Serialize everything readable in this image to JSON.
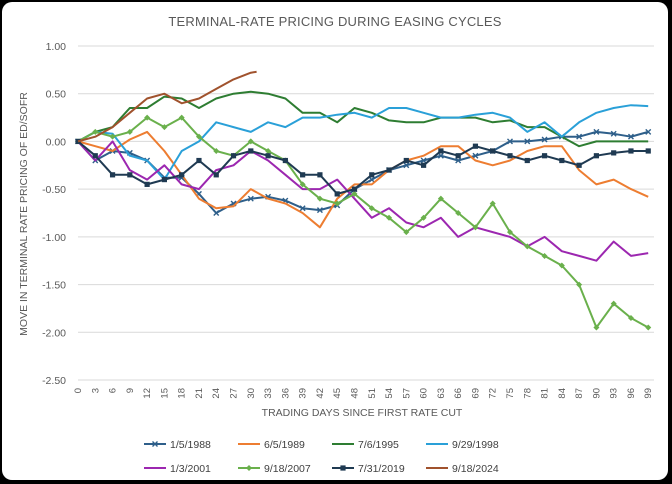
{
  "chart_data": {
    "type": "line",
    "title": "TERMINAL-RATE PRICING DURING EASING CYCLES",
    "xlabel": "TRADING DAYS SINCE FIRST RATE CUT",
    "ylabel": "MOVE IN TERMINAL RATE PRICING OF ED/SOFR",
    "ylim": [
      -2.5,
      1.0
    ],
    "xlim": [
      0,
      100
    ],
    "ytick_values": [
      1.0,
      0.5,
      0.0,
      -0.5,
      -1.0,
      -1.5,
      -2.0,
      -2.5
    ],
    "ytick_labels": [
      "1.00",
      "0.50",
      "0.00",
      "-0.50",
      "-1.00",
      "-1.50",
      "-2.00",
      "-2.50"
    ],
    "xtick_values": [
      0,
      3,
      6,
      9,
      12,
      15,
      18,
      21,
      24,
      27,
      30,
      33,
      36,
      39,
      42,
      45,
      48,
      51,
      54,
      57,
      60,
      63,
      66,
      69,
      72,
      75,
      78,
      81,
      84,
      87,
      90,
      93,
      96,
      99
    ],
    "xtick_labels": [
      "0",
      "3",
      "6",
      "9",
      "12",
      "15",
      "18",
      "21",
      "24",
      "27",
      "30",
      "33",
      "36",
      "39",
      "42",
      "45",
      "48",
      "51",
      "54",
      "57",
      "60",
      "63",
      "66",
      "69",
      "72",
      "75",
      "78",
      "81",
      "84",
      "87",
      "90",
      "93",
      "96",
      "99"
    ],
    "grid": "horizontal",
    "legend_position": "bottom",
    "series": [
      {
        "name": "1/5/1988",
        "color": "#2e5f8a",
        "marker": "x",
        "points": [
          [
            0,
            0
          ],
          [
            3,
            -0.2
          ],
          [
            6,
            -0.1
          ],
          [
            9,
            -0.12
          ],
          [
            12,
            -0.2
          ],
          [
            15,
            -0.38
          ],
          [
            18,
            -0.38
          ],
          [
            21,
            -0.55
          ],
          [
            24,
            -0.75
          ],
          [
            27,
            -0.65
          ],
          [
            30,
            -0.6
          ],
          [
            33,
            -0.58
          ],
          [
            36,
            -0.62
          ],
          [
            39,
            -0.7
          ],
          [
            42,
            -0.72
          ],
          [
            45,
            -0.67
          ],
          [
            48,
            -0.5
          ],
          [
            51,
            -0.4
          ],
          [
            54,
            -0.3
          ],
          [
            57,
            -0.25
          ],
          [
            60,
            -0.2
          ],
          [
            63,
            -0.15
          ],
          [
            66,
            -0.2
          ],
          [
            69,
            -0.15
          ],
          [
            72,
            -0.1
          ],
          [
            75,
            0.0
          ],
          [
            78,
            0.0
          ],
          [
            81,
            0.02
          ],
          [
            84,
            0.05
          ],
          [
            87,
            0.05
          ],
          [
            90,
            0.1
          ],
          [
            93,
            0.08
          ],
          [
            96,
            0.05
          ],
          [
            99,
            0.1
          ]
        ]
      },
      {
        "name": "6/5/1989",
        "color": "#ed7d31",
        "marker": "none",
        "points": [
          [
            0,
            0
          ],
          [
            3,
            -0.05
          ],
          [
            6,
            -0.1
          ],
          [
            9,
            0.02
          ],
          [
            12,
            0.1
          ],
          [
            15,
            -0.1
          ],
          [
            18,
            -0.35
          ],
          [
            21,
            -0.6
          ],
          [
            24,
            -0.7
          ],
          [
            27,
            -0.68
          ],
          [
            30,
            -0.5
          ],
          [
            33,
            -0.6
          ],
          [
            36,
            -0.65
          ],
          [
            39,
            -0.75
          ],
          [
            42,
            -0.9
          ],
          [
            45,
            -0.6
          ],
          [
            48,
            -0.45
          ],
          [
            51,
            -0.45
          ],
          [
            54,
            -0.3
          ],
          [
            57,
            -0.2
          ],
          [
            60,
            -0.15
          ],
          [
            63,
            -0.05
          ],
          [
            66,
            -0.05
          ],
          [
            69,
            -0.2
          ],
          [
            72,
            -0.25
          ],
          [
            75,
            -0.2
          ],
          [
            78,
            -0.1
          ],
          [
            81,
            -0.05
          ],
          [
            84,
            -0.05
          ],
          [
            87,
            -0.3
          ],
          [
            90,
            -0.45
          ],
          [
            93,
            -0.4
          ],
          [
            96,
            -0.5
          ],
          [
            99,
            -0.58
          ]
        ]
      },
      {
        "name": "7/6/1995",
        "color": "#2e7d32",
        "marker": "none",
        "points": [
          [
            0,
            0
          ],
          [
            3,
            0.1
          ],
          [
            6,
            0.15
          ],
          [
            9,
            0.35
          ],
          [
            12,
            0.35
          ],
          [
            15,
            0.47
          ],
          [
            18,
            0.45
          ],
          [
            21,
            0.35
          ],
          [
            24,
            0.45
          ],
          [
            27,
            0.5
          ],
          [
            30,
            0.52
          ],
          [
            33,
            0.5
          ],
          [
            36,
            0.45
          ],
          [
            39,
            0.3
          ],
          [
            42,
            0.3
          ],
          [
            45,
            0.2
          ],
          [
            48,
            0.35
          ],
          [
            51,
            0.3
          ],
          [
            54,
            0.22
          ],
          [
            57,
            0.2
          ],
          [
            60,
            0.2
          ],
          [
            63,
            0.25
          ],
          [
            66,
            0.25
          ],
          [
            69,
            0.25
          ],
          [
            72,
            0.2
          ],
          [
            75,
            0.22
          ],
          [
            78,
            0.15
          ],
          [
            81,
            0.15
          ],
          [
            84,
            0.05
          ],
          [
            87,
            -0.05
          ],
          [
            90,
            0.0
          ],
          [
            93,
            0.0
          ],
          [
            96,
            0.0
          ],
          [
            99,
            0.0
          ]
        ]
      },
      {
        "name": "9/29/1998",
        "color": "#2aa0d8",
        "marker": "none",
        "points": [
          [
            0,
            0
          ],
          [
            3,
            0.1
          ],
          [
            6,
            0.08
          ],
          [
            9,
            -0.15
          ],
          [
            12,
            -0.2
          ],
          [
            15,
            -0.4
          ],
          [
            18,
            -0.1
          ],
          [
            21,
            0.0
          ],
          [
            24,
            0.2
          ],
          [
            27,
            0.15
          ],
          [
            30,
            0.1
          ],
          [
            33,
            0.2
          ],
          [
            36,
            0.15
          ],
          [
            39,
            0.25
          ],
          [
            42,
            0.25
          ],
          [
            45,
            0.28
          ],
          [
            48,
            0.3
          ],
          [
            51,
            0.25
          ],
          [
            54,
            0.35
          ],
          [
            57,
            0.35
          ],
          [
            60,
            0.3
          ],
          [
            63,
            0.25
          ],
          [
            66,
            0.25
          ],
          [
            69,
            0.28
          ],
          [
            72,
            0.3
          ],
          [
            75,
            0.25
          ],
          [
            78,
            0.1
          ],
          [
            81,
            0.2
          ],
          [
            84,
            0.05
          ],
          [
            87,
            0.2
          ],
          [
            90,
            0.3
          ],
          [
            93,
            0.35
          ],
          [
            96,
            0.38
          ],
          [
            99,
            0.37
          ]
        ]
      },
      {
        "name": "1/3/2001",
        "color": "#9c27b0",
        "marker": "none",
        "points": [
          [
            0,
            0
          ],
          [
            3,
            -0.2
          ],
          [
            6,
            0.0
          ],
          [
            9,
            -0.3
          ],
          [
            12,
            -0.4
          ],
          [
            15,
            -0.25
          ],
          [
            18,
            -0.45
          ],
          [
            21,
            -0.5
          ],
          [
            24,
            -0.3
          ],
          [
            27,
            -0.25
          ],
          [
            30,
            -0.1
          ],
          [
            33,
            -0.2
          ],
          [
            36,
            -0.35
          ],
          [
            39,
            -0.5
          ],
          [
            42,
            -0.5
          ],
          [
            45,
            -0.4
          ],
          [
            48,
            -0.6
          ],
          [
            51,
            -0.8
          ],
          [
            54,
            -0.7
          ],
          [
            57,
            -0.85
          ],
          [
            60,
            -0.9
          ],
          [
            63,
            -0.8
          ],
          [
            66,
            -1.0
          ],
          [
            69,
            -0.9
          ],
          [
            72,
            -0.95
          ],
          [
            75,
            -1.0
          ],
          [
            78,
            -1.1
          ],
          [
            81,
            -1.0
          ],
          [
            84,
            -1.15
          ],
          [
            87,
            -1.2
          ],
          [
            90,
            -1.25
          ],
          [
            93,
            -1.05
          ],
          [
            96,
            -1.2
          ],
          [
            99,
            -1.17
          ]
        ]
      },
      {
        "name": "9/18/2007",
        "color": "#6ab04c",
        "marker": "diamond",
        "points": [
          [
            0,
            0
          ],
          [
            3,
            0.1
          ],
          [
            6,
            0.05
          ],
          [
            9,
            0.1
          ],
          [
            12,
            0.25
          ],
          [
            15,
            0.15
          ],
          [
            18,
            0.25
          ],
          [
            21,
            0.05
          ],
          [
            24,
            -0.1
          ],
          [
            27,
            -0.15
          ],
          [
            30,
            0.0
          ],
          [
            33,
            -0.1
          ],
          [
            36,
            -0.2
          ],
          [
            39,
            -0.45
          ],
          [
            42,
            -0.6
          ],
          [
            45,
            -0.65
          ],
          [
            48,
            -0.55
          ],
          [
            51,
            -0.7
          ],
          [
            54,
            -0.8
          ],
          [
            57,
            -0.95
          ],
          [
            60,
            -0.8
          ],
          [
            63,
            -0.6
          ],
          [
            66,
            -0.75
          ],
          [
            69,
            -0.9
          ],
          [
            72,
            -0.65
          ],
          [
            75,
            -0.95
          ],
          [
            78,
            -1.1
          ],
          [
            81,
            -1.2
          ],
          [
            84,
            -1.3
          ],
          [
            87,
            -1.5
          ],
          [
            90,
            -1.95
          ],
          [
            93,
            -1.7
          ],
          [
            96,
            -1.85
          ],
          [
            99,
            -1.95
          ]
        ]
      },
      {
        "name": "7/31/2019",
        "color": "#1f3a52",
        "marker": "square",
        "points": [
          [
            0,
            0
          ],
          [
            3,
            -0.15
          ],
          [
            6,
            -0.35
          ],
          [
            9,
            -0.35
          ],
          [
            12,
            -0.45
          ],
          [
            15,
            -0.4
          ],
          [
            18,
            -0.35
          ],
          [
            21,
            -0.2
          ],
          [
            24,
            -0.35
          ],
          [
            27,
            -0.15
          ],
          [
            30,
            -0.1
          ],
          [
            33,
            -0.15
          ],
          [
            36,
            -0.2
          ],
          [
            39,
            -0.35
          ],
          [
            42,
            -0.35
          ],
          [
            45,
            -0.55
          ],
          [
            48,
            -0.5
          ],
          [
            51,
            -0.35
          ],
          [
            54,
            -0.3
          ],
          [
            57,
            -0.2
          ],
          [
            60,
            -0.25
          ],
          [
            63,
            -0.1
          ],
          [
            66,
            -0.15
          ],
          [
            69,
            -0.05
          ],
          [
            72,
            -0.1
          ],
          [
            75,
            -0.15
          ],
          [
            78,
            -0.2
          ],
          [
            81,
            -0.15
          ],
          [
            84,
            -0.2
          ],
          [
            87,
            -0.25
          ],
          [
            90,
            -0.15
          ],
          [
            93,
            -0.12
          ],
          [
            96,
            -0.1
          ],
          [
            99,
            -0.1
          ]
        ]
      },
      {
        "name": "9/18/2024",
        "color": "#a0522d",
        "marker": "none",
        "points": [
          [
            0,
            0
          ],
          [
            3,
            0.05
          ],
          [
            6,
            0.15
          ],
          [
            9,
            0.3
          ],
          [
            12,
            0.45
          ],
          [
            15,
            0.5
          ],
          [
            18,
            0.4
          ],
          [
            21,
            0.45
          ],
          [
            24,
            0.55
          ],
          [
            27,
            0.65
          ],
          [
            30,
            0.72
          ],
          [
            31,
            0.73
          ]
        ]
      }
    ]
  }
}
